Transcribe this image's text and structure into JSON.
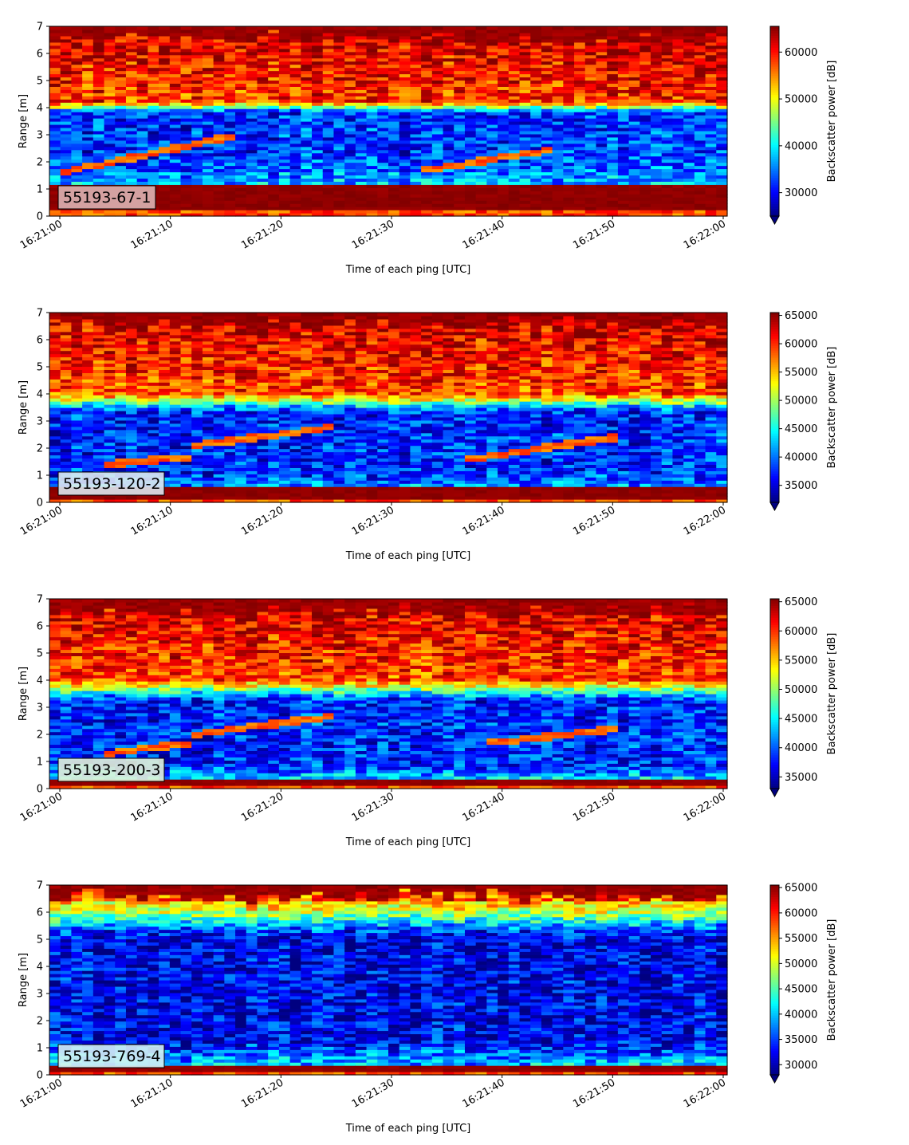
{
  "chart_data": [
    {
      "type": "heatmap",
      "label": "55193-67-1",
      "label_bg": "#dcb2b2",
      "xlabel": "Time of each ping [UTC]",
      "ylabel": "Range [m]",
      "colorbar_label": "Backscatter power [dB]",
      "ylim": [
        0,
        7
      ],
      "yticks": [
        "0",
        "1",
        "2",
        "3",
        "4",
        "5",
        "6",
        "7"
      ],
      "xlim": [
        "16:21:00",
        "16:22:00"
      ],
      "xticks": [
        "16:21:00",
        "16:21:10",
        "16:21:20",
        "16:21:30",
        "16:21:40",
        "16:21:50",
        "16:22:00"
      ],
      "clim": [
        25000,
        65500
      ],
      "cticks": [
        "30000",
        "40000",
        "50000",
        "60000"
      ],
      "cticks_values": [
        30000,
        40000,
        50000,
        60000
      ],
      "profile": {
        "bottom_band": [
          0.25,
          1.15
        ],
        "low": [
          2.5,
          3.8
        ],
        "high": [
          4.2,
          6.7
        ],
        "mid": 0.5
      },
      "tracks": [
        {
          "t": [
            0,
            16
          ],
          "r": [
            1.6,
            3.0
          ]
        },
        {
          "t": [
            33,
            45
          ],
          "r": [
            1.7,
            2.5
          ]
        }
      ]
    },
    {
      "type": "heatmap",
      "label": "55193-120-2",
      "label_bg": "#dde8f0",
      "xlabel": "Time of each ping [UTC]",
      "ylabel": "Range [m]",
      "colorbar_label": "Backscatter power [dB]",
      "ylim": [
        0,
        7
      ],
      "yticks": [
        "0",
        "1",
        "2",
        "3",
        "4",
        "5",
        "6",
        "7"
      ],
      "xlim": [
        "16:21:00",
        "16:22:00"
      ],
      "xticks": [
        "16:21:00",
        "16:21:10",
        "16:21:20",
        "16:21:30",
        "16:21:40",
        "16:21:50",
        "16:22:00"
      ],
      "clim": [
        32000,
        65500
      ],
      "cticks": [
        "35000",
        "40000",
        "45000",
        "50000",
        "55000",
        "60000",
        "65000"
      ],
      "cticks_values": [
        35000,
        40000,
        45000,
        50000,
        55000,
        60000,
        65000
      ],
      "profile": {
        "bottom_band": [
          0.1,
          0.55
        ],
        "low": [
          1.2,
          3.3
        ],
        "high": [
          4.0,
          6.7
        ],
        "mid": 0.45
      },
      "tracks": [
        {
          "t": [
            4,
            12
          ],
          "r": [
            1.4,
            1.7
          ]
        },
        {
          "t": [
            12,
            25
          ],
          "r": [
            2.1,
            2.8
          ]
        },
        {
          "t": [
            37,
            50
          ],
          "r": [
            1.6,
            2.4
          ]
        }
      ]
    },
    {
      "type": "heatmap",
      "label": "55193-200-3",
      "label_bg": "#e2f2d8",
      "xlabel": "Time of each ping [UTC]",
      "ylabel": "Range [m]",
      "colorbar_label": "Backscatter power [dB]",
      "ylim": [
        0,
        7
      ],
      "yticks": [
        "0",
        "1",
        "2",
        "3",
        "4",
        "5",
        "6",
        "7"
      ],
      "xlim": [
        "16:21:00",
        "16:22:00"
      ],
      "xticks": [
        "16:21:00",
        "16:21:10",
        "16:21:20",
        "16:21:30",
        "16:21:40",
        "16:21:50",
        "16:22:00"
      ],
      "clim": [
        33000,
        65500
      ],
      "cticks": [
        "35000",
        "40000",
        "45000",
        "50000",
        "55000",
        "60000",
        "65000"
      ],
      "cticks_values": [
        35000,
        40000,
        45000,
        50000,
        55000,
        60000,
        65000
      ],
      "profile": {
        "bottom_band": [
          0.15,
          0.4
        ],
        "low": [
          1.0,
          3.2
        ],
        "high": [
          4.0,
          6.6
        ],
        "mid": 0.45
      },
      "tracks": [
        {
          "t": [
            4,
            12
          ],
          "r": [
            1.3,
            1.7
          ]
        },
        {
          "t": [
            12,
            25
          ],
          "r": [
            2.0,
            2.7
          ]
        },
        {
          "t": [
            39,
            50
          ],
          "r": [
            1.7,
            2.2
          ]
        }
      ]
    },
    {
      "type": "heatmap",
      "label": "55193-769-4",
      "label_bg": "#d4f2f4",
      "xlabel": "Time of each ping [UTC]",
      "ylabel": "Range [m]",
      "colorbar_label": "Backscatter power [dB]",
      "ylim": [
        0,
        7
      ],
      "yticks": [
        "0",
        "1",
        "2",
        "3",
        "4",
        "5",
        "6",
        "7"
      ],
      "xlim": [
        "16:21:00",
        "16:22:00"
      ],
      "xticks": [
        "16:21:00",
        "16:21:10",
        "16:21:20",
        "16:21:30",
        "16:21:40",
        "16:21:50",
        "16:22:00"
      ],
      "clim": [
        28000,
        65500
      ],
      "cticks": [
        "30000",
        "35000",
        "40000",
        "45000",
        "50000",
        "55000",
        "60000",
        "65000"
      ],
      "cticks_values": [
        30000,
        35000,
        40000,
        45000,
        50000,
        55000,
        60000,
        65000
      ],
      "profile": {
        "bottom_band": [
          0.15,
          0.35
        ],
        "low": [
          1.5,
          5.0
        ],
        "high": [
          6.4,
          6.7
        ],
        "mid": 0.3
      },
      "tracks": []
    }
  ]
}
